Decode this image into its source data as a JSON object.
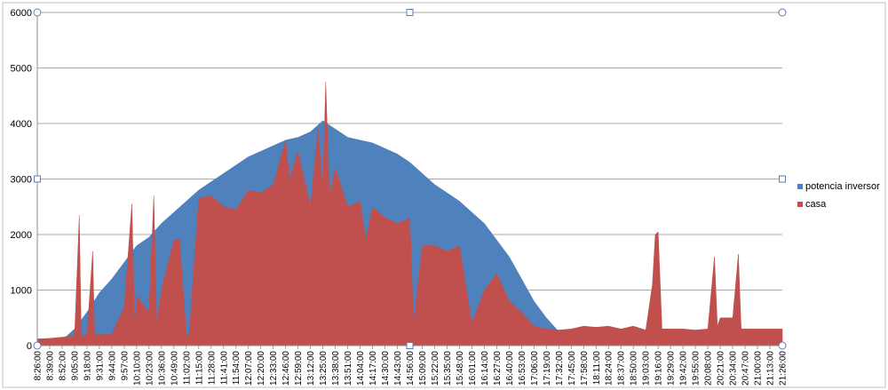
{
  "chart_data": {
    "type": "area",
    "title": "",
    "xlabel": "",
    "ylabel": "",
    "ylim": [
      0,
      6000
    ],
    "yticks": [
      0,
      1000,
      2000,
      3000,
      4000,
      5000,
      6000
    ],
    "grid": true,
    "legend_position": "right",
    "x_tick_labels": [
      "8:26:00",
      "8:39:00",
      "8:52:00",
      "9:05:00",
      "9:18:00",
      "9:31:00",
      "9:44:00",
      "9:57:00",
      "10:10:00",
      "10:23:00",
      "10:36:00",
      "10:49:00",
      "11:02:00",
      "11:15:00",
      "11:28:00",
      "11:41:00",
      "11:54:00",
      "12:07:00",
      "12:20:00",
      "12:33:00",
      "12:46:00",
      "12:59:00",
      "13:12:00",
      "13:25:00",
      "13:38:00",
      "13:51:00",
      "14:04:00",
      "14:17:00",
      "14:30:00",
      "14:43:00",
      "14:56:00",
      "15:09:00",
      "15:22:00",
      "15:35:00",
      "15:48:00",
      "16:01:00",
      "16:14:00",
      "16:27:00",
      "16:40:00",
      "16:53:00",
      "17:06:00",
      "17:19:00",
      "17:32:00",
      "17:45:00",
      "17:58:00",
      "18:11:00",
      "18:24:00",
      "18:37:00",
      "18:50:00",
      "19:03:00",
      "19:16:00",
      "19:29:00",
      "19:42:00",
      "19:55:00",
      "20:08:00",
      "20:21:00",
      "20:34:00",
      "20:47:00",
      "21:00:00",
      "21:13:00",
      "21:26:00"
    ],
    "series": [
      {
        "name": "potencia inversor",
        "color": "#4f81bd",
        "points": [
          [
            "8:26:00",
            0
          ],
          [
            "8:39:00",
            0
          ],
          [
            "8:52:00",
            100
          ],
          [
            "9:05:00",
            300
          ],
          [
            "9:18:00",
            600
          ],
          [
            "9:31:00",
            950
          ],
          [
            "9:44:00",
            1200
          ],
          [
            "9:57:00",
            1500
          ],
          [
            "10:10:00",
            1800
          ],
          [
            "10:23:00",
            1950
          ],
          [
            "10:36:00",
            2200
          ],
          [
            "10:49:00",
            2400
          ],
          [
            "11:02:00",
            2600
          ],
          [
            "11:15:00",
            2800
          ],
          [
            "11:28:00",
            2950
          ],
          [
            "11:41:00",
            3100
          ],
          [
            "11:54:00",
            3250
          ],
          [
            "12:07:00",
            3400
          ],
          [
            "12:20:00",
            3500
          ],
          [
            "12:33:00",
            3600
          ],
          [
            "12:46:00",
            3700
          ],
          [
            "12:59:00",
            3750
          ],
          [
            "13:12:00",
            3850
          ],
          [
            "13:25:00",
            4050
          ],
          [
            "13:38:00",
            3900
          ],
          [
            "13:51:00",
            3750
          ],
          [
            "14:04:00",
            3700
          ],
          [
            "14:17:00",
            3650
          ],
          [
            "14:30:00",
            3550
          ],
          [
            "14:43:00",
            3450
          ],
          [
            "14:56:00",
            3300
          ],
          [
            "15:09:00",
            3100
          ],
          [
            "15:22:00",
            2900
          ],
          [
            "15:35:00",
            2750
          ],
          [
            "15:48:00",
            2600
          ],
          [
            "16:01:00",
            2400
          ],
          [
            "16:14:00",
            2200
          ],
          [
            "16:27:00",
            1900
          ],
          [
            "16:40:00",
            1600
          ],
          [
            "16:53:00",
            1200
          ],
          [
            "17:06:00",
            800
          ],
          [
            "17:19:00",
            500
          ],
          [
            "17:32:00",
            250
          ],
          [
            "17:45:00",
            150
          ],
          [
            "17:58:00",
            120
          ],
          [
            "18:11:00",
            100
          ],
          [
            "18:24:00",
            90
          ],
          [
            "18:37:00",
            80
          ],
          [
            "18:50:00",
            60
          ],
          [
            "19:03:00",
            50
          ],
          [
            "19:16:00",
            40
          ],
          [
            "19:29:00",
            30
          ],
          [
            "19:42:00",
            20
          ],
          [
            "19:55:00",
            10
          ],
          [
            "20:08:00",
            0
          ],
          [
            "20:21:00",
            0
          ],
          [
            "20:34:00",
            0
          ],
          [
            "20:47:00",
            0
          ],
          [
            "21:00:00",
            0
          ],
          [
            "21:13:00",
            0
          ],
          [
            "21:26:00",
            0
          ]
        ]
      },
      {
        "name": "casa",
        "color": "#c0504d",
        "points": [
          [
            "8:26:00",
            120
          ],
          [
            "8:39:00",
            130
          ],
          [
            "8:52:00",
            150
          ],
          [
            "9:05:00",
            180
          ],
          [
            "9:10:00",
            2350
          ],
          [
            "9:12:00",
            180
          ],
          [
            "9:18:00",
            180
          ],
          [
            "9:24:00",
            1700
          ],
          [
            "9:26:00",
            200
          ],
          [
            "9:31:00",
            200
          ],
          [
            "9:44:00",
            200
          ],
          [
            "9:57:00",
            700
          ],
          [
            "10:05:00",
            2550
          ],
          [
            "10:08:00",
            300
          ],
          [
            "10:10:00",
            900
          ],
          [
            "10:23:00",
            600
          ],
          [
            "10:28:00",
            2700
          ],
          [
            "10:31:00",
            400
          ],
          [
            "10:36:00",
            1000
          ],
          [
            "10:49:00",
            1900
          ],
          [
            "10:55:00",
            1900
          ],
          [
            "11:02:00",
            200
          ],
          [
            "11:05:00",
            200
          ],
          [
            "11:15:00",
            2650
          ],
          [
            "11:28:00",
            2700
          ],
          [
            "11:41:00",
            2500
          ],
          [
            "11:54:00",
            2450
          ],
          [
            "12:07:00",
            2800
          ],
          [
            "12:20:00",
            2750
          ],
          [
            "12:33:00",
            2900
          ],
          [
            "12:46:00",
            3700
          ],
          [
            "12:50:00",
            3000
          ],
          [
            "12:59:00",
            3500
          ],
          [
            "13:12:00",
            2500
          ],
          [
            "13:20:00",
            3900
          ],
          [
            "13:25:00",
            2800
          ],
          [
            "13:28:00",
            4750
          ],
          [
            "13:32:00",
            2700
          ],
          [
            "13:38:00",
            3200
          ],
          [
            "13:51:00",
            2500
          ],
          [
            "14:04:00",
            2600
          ],
          [
            "14:10:00",
            1900
          ],
          [
            "14:17:00",
            2500
          ],
          [
            "14:30:00",
            2300
          ],
          [
            "14:43:00",
            2200
          ],
          [
            "14:56:00",
            2300
          ],
          [
            "15:00:00",
            400
          ],
          [
            "15:09:00",
            1800
          ],
          [
            "15:22:00",
            1800
          ],
          [
            "15:35:00",
            1700
          ],
          [
            "15:48:00",
            1800
          ],
          [
            "16:01:00",
            400
          ],
          [
            "16:14:00",
            1000
          ],
          [
            "16:27:00",
            1300
          ],
          [
            "16:40:00",
            800
          ],
          [
            "16:53:00",
            600
          ],
          [
            "17:06:00",
            350
          ],
          [
            "17:19:00",
            300
          ],
          [
            "17:32:00",
            280
          ],
          [
            "17:45:00",
            300
          ],
          [
            "17:58:00",
            350
          ],
          [
            "18:11:00",
            330
          ],
          [
            "18:24:00",
            350
          ],
          [
            "18:37:00",
            300
          ],
          [
            "18:50:00",
            350
          ],
          [
            "19:03:00",
            280
          ],
          [
            "19:10:00",
            1100
          ],
          [
            "19:13:00",
            2000
          ],
          [
            "19:16:00",
            2050
          ],
          [
            "19:20:00",
            300
          ],
          [
            "19:29:00",
            300
          ],
          [
            "19:42:00",
            300
          ],
          [
            "19:55:00",
            280
          ],
          [
            "20:08:00",
            300
          ],
          [
            "20:15:00",
            1600
          ],
          [
            "20:18:00",
            350
          ],
          [
            "20:21:00",
            500
          ],
          [
            "20:34:00",
            500
          ],
          [
            "20:40:00",
            1650
          ],
          [
            "20:43:00",
            300
          ],
          [
            "20:47:00",
            300
          ],
          [
            "21:00:00",
            300
          ],
          [
            "21:13:00",
            300
          ],
          [
            "21:26:00",
            300
          ]
        ]
      }
    ]
  }
}
